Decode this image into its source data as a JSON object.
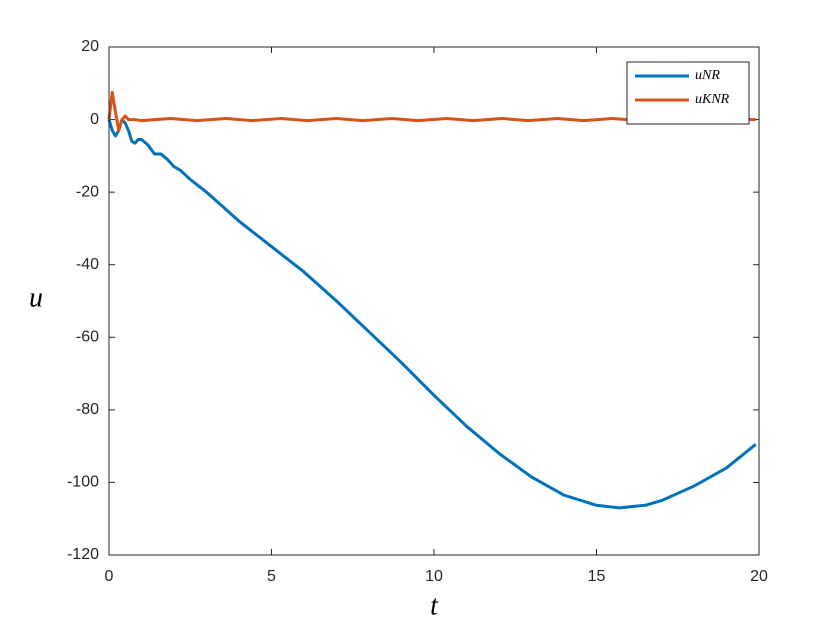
{
  "chart_data": {
    "type": "line",
    "x_label": "t",
    "y_label": "u",
    "xlim": [
      0,
      20
    ],
    "ylim": [
      -120,
      20
    ],
    "xticks": [
      0,
      5,
      10,
      15,
      20
    ],
    "yticks": [
      -120,
      -100,
      -80,
      -60,
      -40,
      -20,
      0,
      20
    ],
    "grid": false,
    "legend": "upper right",
    "series": [
      {
        "name": "uNR",
        "color": "#0072bd",
        "x": [
          0,
          0.1,
          0.2,
          0.3,
          0.4,
          0.5,
          0.6,
          0.7,
          0.8,
          0.9,
          1.0,
          1.2,
          1.4,
          1.6,
          1.8,
          2.0,
          2.2,
          2.5,
          3,
          4,
          5,
          6,
          7,
          8,
          9,
          10,
          11,
          12,
          13,
          14,
          15,
          15.7,
          16.5,
          17,
          18,
          19,
          19.9
        ],
        "values": [
          0,
          -3,
          -4.5,
          -3,
          0,
          -1,
          -3,
          -6,
          -6.5,
          -5.5,
          -5.5,
          -7,
          -9.5,
          -9.5,
          -11,
          -13,
          -14,
          -16.5,
          -20,
          -28,
          -35,
          -42,
          -50,
          -58.5,
          -67,
          -76,
          -84.5,
          -92,
          -98.5,
          -103.5,
          -106.3,
          -107,
          -106.3,
          -105,
          -101,
          -96,
          -89.5
        ]
      },
      {
        "name": "uKNR",
        "color": "#d95319",
        "x": [
          0,
          0.1,
          0.2,
          0.3,
          0.4,
          0.5,
          0.6,
          0.8,
          1.0,
          1.9,
          2.7,
          3.6,
          4.4,
          5.3,
          6.1,
          7.0,
          7.8,
          8.7,
          9.5,
          10.4,
          11.2,
          12.1,
          12.9,
          13.8,
          14.6,
          15.5,
          16.3,
          17.2,
          18.0,
          18.9,
          19.9
        ],
        "values": [
          0,
          7.5,
          2,
          -3,
          0,
          1,
          0,
          0,
          -0.3,
          0.3,
          -0.3,
          0.3,
          -0.3,
          0.3,
          -0.3,
          0.3,
          -0.3,
          0.3,
          -0.3,
          0.3,
          -0.3,
          0.3,
          -0.3,
          0.3,
          -0.3,
          0.3,
          -0.3,
          0.3,
          -0.3,
          0.3,
          0
        ]
      }
    ]
  }
}
